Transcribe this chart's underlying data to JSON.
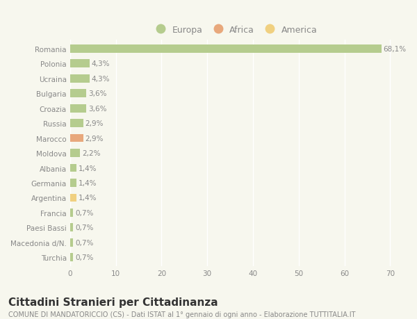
{
  "categories": [
    "Romania",
    "Polonia",
    "Ucraina",
    "Bulgaria",
    "Croazia",
    "Russia",
    "Marocco",
    "Moldova",
    "Albania",
    "Germania",
    "Argentina",
    "Francia",
    "Paesi Bassi",
    "Macedonia d/N.",
    "Turchia"
  ],
  "values": [
    68.1,
    4.3,
    4.3,
    3.6,
    3.6,
    2.9,
    2.9,
    2.2,
    1.4,
    1.4,
    1.4,
    0.7,
    0.7,
    0.7,
    0.7
  ],
  "labels": [
    "68,1%",
    "4,3%",
    "4,3%",
    "3,6%",
    "3,6%",
    "2,9%",
    "2,9%",
    "2,2%",
    "1,4%",
    "1,4%",
    "1,4%",
    "0,7%",
    "0,7%",
    "0,7%",
    "0,7%"
  ],
  "continent": [
    "Europa",
    "Europa",
    "Europa",
    "Europa",
    "Europa",
    "Europa",
    "Africa",
    "Europa",
    "Europa",
    "Europa",
    "America",
    "Europa",
    "Europa",
    "Europa",
    "Europa"
  ],
  "colors": {
    "Europa": "#b5cc8e",
    "Africa": "#e8a87c",
    "America": "#f0d080"
  },
  "background_color": "#f7f7ee",
  "plot_bg_color": "#f7f7ee",
  "grid_color": "#ffffff",
  "title": "Cittadini Stranieri per Cittadinanza",
  "subtitle": "COMUNE DI MANDATORICCIO (CS) - Dati ISTAT al 1° gennaio di ogni anno - Elaborazione TUTTITALIA.IT",
  "xlim": [
    0,
    72
  ],
  "xticks": [
    0,
    10,
    20,
    30,
    40,
    50,
    60,
    70
  ],
  "title_fontsize": 11,
  "subtitle_fontsize": 7,
  "label_fontsize": 7.5,
  "tick_fontsize": 7.5,
  "legend_fontsize": 9
}
